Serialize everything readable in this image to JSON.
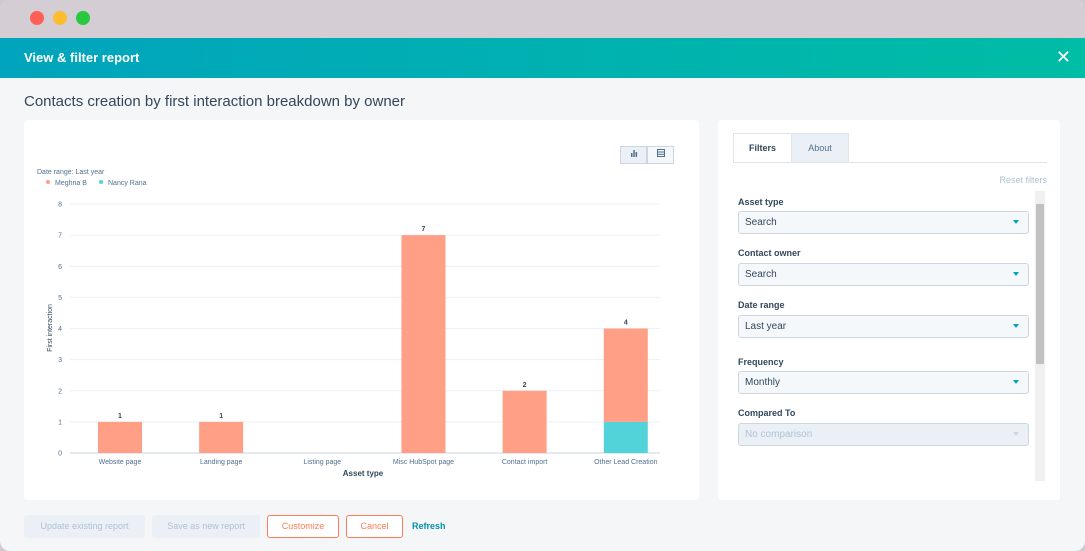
{
  "modal": {
    "title": "View & filter report"
  },
  "report": {
    "title": "Contacts creation by first interaction breakdown by owner"
  },
  "chart_toggle": {
    "chart_icon": "bar-chart-icon",
    "table_icon": "table-icon"
  },
  "chart_data": {
    "type": "bar",
    "stacked": true,
    "subtitle": "Date range: Last year",
    "categories": [
      "Website page",
      "Landing page",
      "Listing page",
      "Misc HubSpot page",
      "Contact import",
      "Other Lead Creation"
    ],
    "series": [
      {
        "name": "Meghna B",
        "color": "#ff9f85",
        "values": [
          1,
          1,
          0,
          7,
          2,
          3
        ]
      },
      {
        "name": "Nancy Rana",
        "color": "#51d3d9",
        "values": [
          0,
          0,
          0,
          0,
          0,
          1
        ]
      }
    ],
    "totals": [
      1,
      1,
      0,
      7,
      2,
      4
    ],
    "total_labels": [
      "1",
      "1",
      "",
      "7",
      "2",
      "4"
    ],
    "yticks": [
      "0",
      "1",
      "2",
      "3",
      "4",
      "5",
      "6",
      "7",
      "8"
    ],
    "ylim": [
      0,
      8
    ],
    "xlabel": "Asset type",
    "ylabel": "First interaction",
    "legend": "top-left",
    "grid": true
  },
  "filters": {
    "tabs": [
      "Filters",
      "About"
    ],
    "reset_label": "Reset filters",
    "fields": [
      {
        "label": "Asset type",
        "value": "Search",
        "disabled": false
      },
      {
        "label": "Contact owner",
        "value": "Search",
        "disabled": false
      },
      {
        "label": "Date range",
        "value": "Last year",
        "disabled": false
      },
      {
        "label": "Frequency",
        "value": "Monthly",
        "disabled": false
      },
      {
        "label": "Compared To",
        "value": "No comparison",
        "disabled": true
      }
    ]
  },
  "footer": {
    "update_label": "Update existing report",
    "save_label": "Save as new report",
    "customize_label": "Customize",
    "cancel_label": "Cancel",
    "refresh_label": "Refresh"
  },
  "colors": {
    "header_start": "#00a4bd",
    "header_end": "#00bda5",
    "accent": "#ff7a59",
    "link": "#0091ae"
  }
}
